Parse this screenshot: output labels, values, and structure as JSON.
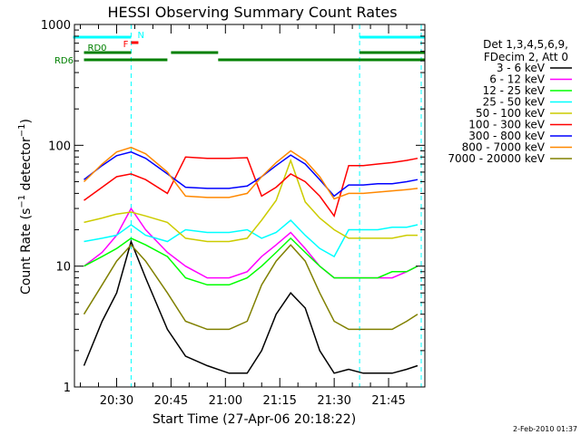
{
  "chart_data": {
    "type": "line",
    "title": "HESSI Observing Summary Count Rates",
    "xlabel": "Start Time (27-Apr-06 20:18:22)",
    "ylabel": "Count Rate (s^-1 detector^-1)",
    "y_scale": "log",
    "ylim": [
      1,
      1000
    ],
    "xlim": [
      "20:18:22",
      "21:55:00"
    ],
    "x_tick_labels": [
      "20:30",
      "20:45",
      "21:00",
      "21:15",
      "21:30",
      "21:45"
    ],
    "y_tick_labels": [
      "1",
      "10",
      "100",
      "1000"
    ],
    "grid": false,
    "legend_position": "right",
    "legend_header": [
      "Det 1,3,4,5,6,9,",
      "FDecim 2, Att 0"
    ],
    "series": [
      {
        "name": "3 - 6 keV",
        "color": "#000000",
        "x": [
          "20:21",
          "20:26",
          "20:30",
          "20:34",
          "20:38",
          "20:44",
          "20:49",
          "20:55",
          "21:01",
          "21:06",
          "21:10",
          "21:14",
          "21:18",
          "21:22",
          "21:26",
          "21:30",
          "21:34",
          "21:38",
          "21:42",
          "21:46",
          "21:50",
          "21:53"
        ],
        "y": [
          1.5,
          3.5,
          6,
          16,
          8,
          3,
          1.8,
          1.5,
          1.3,
          1.3,
          2,
          4,
          6,
          4.5,
          2,
          1.3,
          1.4,
          1.3,
          1.3,
          1.3,
          1.4,
          1.5
        ]
      },
      {
        "name": "6 - 12 keV",
        "color": "#ff00ff",
        "x": [
          "20:21",
          "20:26",
          "20:30",
          "20:34",
          "20:38",
          "20:44",
          "20:49",
          "20:55",
          "21:01",
          "21:06",
          "21:10",
          "21:14",
          "21:18",
          "21:22",
          "21:26",
          "21:30",
          "21:34",
          "21:38",
          "21:42",
          "21:46",
          "21:50",
          "21:53"
        ],
        "y": [
          10,
          13,
          18,
          30,
          20,
          13,
          10,
          8,
          8,
          9,
          12,
          15,
          19,
          14,
          10,
          8,
          8,
          8,
          8,
          8,
          9,
          10
        ]
      },
      {
        "name": "12 - 25 keV",
        "color": "#00ff00",
        "x": [
          "20:21",
          "20:26",
          "20:30",
          "20:34",
          "20:38",
          "20:44",
          "20:49",
          "20:55",
          "21:01",
          "21:06",
          "21:10",
          "21:14",
          "21:18",
          "21:22",
          "21:26",
          "21:30",
          "21:34",
          "21:38",
          "21:42",
          "21:46",
          "21:50",
          "21:53"
        ],
        "y": [
          10,
          12,
          14,
          17,
          15,
          12,
          8,
          7,
          7,
          8,
          10,
          13,
          17,
          13,
          10,
          8,
          8,
          8,
          8,
          9,
          9,
          10
        ]
      },
      {
        "name": "25 - 50 keV",
        "color": "#00ffff",
        "x": [
          "20:21",
          "20:26",
          "20:30",
          "20:34",
          "20:38",
          "20:44",
          "20:49",
          "20:55",
          "21:01",
          "21:06",
          "21:10",
          "21:14",
          "21:18",
          "21:22",
          "21:26",
          "21:30",
          "21:34",
          "21:38",
          "21:42",
          "21:46",
          "21:50",
          "21:53"
        ],
        "y": [
          16,
          17,
          18,
          22,
          18,
          16,
          20,
          19,
          19,
          20,
          17,
          19,
          24,
          18,
          14,
          12,
          20,
          20,
          20,
          21,
          21,
          22
        ]
      },
      {
        "name": "50 - 100 keV",
        "color": "#cccc00",
        "x": [
          "20:21",
          "20:26",
          "20:30",
          "20:34",
          "20:38",
          "20:44",
          "20:49",
          "20:55",
          "21:01",
          "21:06",
          "21:10",
          "21:14",
          "21:18",
          "21:22",
          "21:26",
          "21:30",
          "21:34",
          "21:38",
          "21:42",
          "21:46",
          "21:50",
          "21:53"
        ],
        "y": [
          23,
          25,
          27,
          28,
          26,
          23,
          17,
          16,
          16,
          17,
          24,
          35,
          75,
          34,
          25,
          20,
          17,
          17,
          17,
          17,
          18,
          18
        ]
      },
      {
        "name": "100 - 300 keV",
        "color": "#ff0000",
        "x": [
          "20:21",
          "20:26",
          "20:30",
          "20:34",
          "20:38",
          "20:44",
          "20:49",
          "20:55",
          "21:01",
          "21:06",
          "21:10",
          "21:14",
          "21:18",
          "21:22",
          "21:26",
          "21:30",
          "21:34",
          "21:38",
          "21:42",
          "21:46",
          "21:50",
          "21:53"
        ],
        "y": [
          35,
          45,
          55,
          58,
          52,
          40,
          80,
          78,
          78,
          79,
          38,
          45,
          58,
          50,
          38,
          26,
          68,
          68,
          70,
          72,
          75,
          78
        ]
      },
      {
        "name": "300 - 800 keV",
        "color": "#0000ff",
        "x": [
          "20:21",
          "20:26",
          "20:30",
          "20:34",
          "20:38",
          "20:44",
          "20:49",
          "20:55",
          "21:01",
          "21:06",
          "21:10",
          "21:14",
          "21:18",
          "21:22",
          "21:26",
          "21:30",
          "21:34",
          "21:38",
          "21:42",
          "21:46",
          "21:50",
          "21:53"
        ],
        "y": [
          52,
          68,
          82,
          88,
          78,
          58,
          45,
          44,
          44,
          46,
          55,
          68,
          83,
          70,
          52,
          38,
          47,
          47,
          48,
          48,
          50,
          52
        ]
      },
      {
        "name": "800 - 7000 keV",
        "color": "#ff8800",
        "x": [
          "20:21",
          "20:26",
          "20:30",
          "20:34",
          "20:38",
          "20:44",
          "20:49",
          "20:55",
          "21:01",
          "21:06",
          "21:10",
          "21:14",
          "21:18",
          "21:22",
          "21:26",
          "21:30",
          "21:34",
          "21:38",
          "21:42",
          "21:46",
          "21:50",
          "21:53"
        ],
        "y": [
          50,
          70,
          88,
          96,
          85,
          60,
          38,
          37,
          37,
          40,
          55,
          72,
          90,
          75,
          55,
          36,
          40,
          40,
          41,
          42,
          43,
          44
        ]
      },
      {
        "name": "7000 - 20000 keV",
        "color": "#808000",
        "x": [
          "20:21",
          "20:26",
          "20:30",
          "20:34",
          "20:38",
          "20:44",
          "20:49",
          "20:55",
          "21:01",
          "21:06",
          "21:10",
          "21:14",
          "21:18",
          "21:22",
          "21:26",
          "21:30",
          "21:34",
          "21:38",
          "21:42",
          "21:46",
          "21:50",
          "21:53"
        ],
        "y": [
          4,
          7,
          11,
          15,
          11,
          6,
          3.5,
          3,
          3,
          3.5,
          7,
          11,
          15,
          11,
          6,
          3.5,
          3,
          3,
          3,
          3,
          3.5,
          4
        ]
      }
    ],
    "flags": [
      {
        "label": "N",
        "color": "#00ffff",
        "segments": [
          [
            "20:18",
            "20:34"
          ],
          [
            "21:37",
            "21:55"
          ]
        ]
      },
      {
        "label": "F",
        "color": "#ff0000",
        "segments": [
          [
            "20:34",
            "20:36"
          ]
        ]
      },
      {
        "label": "RD0",
        "color": "#008000",
        "segments": [
          [
            "20:21",
            "20:34"
          ],
          [
            "20:45",
            "20:58"
          ],
          [
            "21:37",
            "21:55"
          ]
        ]
      },
      {
        "label": "RD6",
        "color": "#008000",
        "segments": [
          [
            "20:21",
            "20:44"
          ],
          [
            "20:58",
            "21:37"
          ],
          [
            "21:37",
            "21:55"
          ]
        ]
      }
    ],
    "vertical_lines": [
      {
        "x": "20:34",
        "color": "#00ffff",
        "style": "dashed"
      },
      {
        "x": "21:37",
        "color": "#00ffff",
        "style": "dashed"
      },
      {
        "x": "21:54",
        "color": "#00ffff",
        "style": "dashed"
      }
    ],
    "footer": "2-Feb-2010 01:37"
  }
}
